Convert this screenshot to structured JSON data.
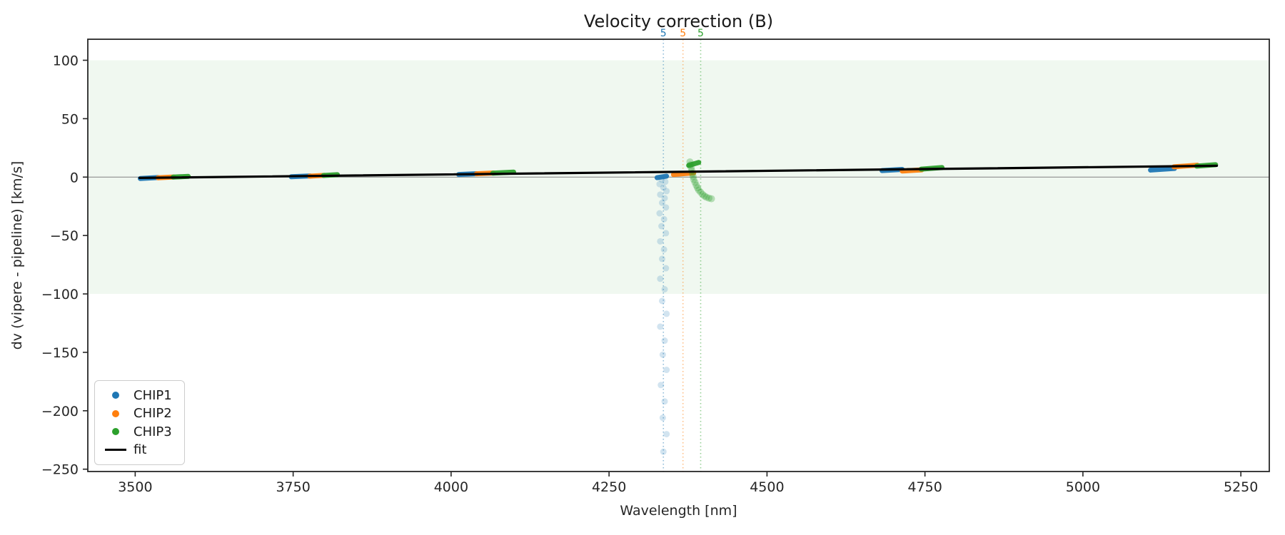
{
  "title": "Velocity correction (B)",
  "legend": {
    "items": [
      {
        "label": "CHIP1",
        "color": "#1f77b4",
        "marker": "dot"
      },
      {
        "label": "CHIP2",
        "color": "#ff7f0e",
        "marker": "dot"
      },
      {
        "label": "CHIP3",
        "color": "#2ca02c",
        "marker": "dot"
      },
      {
        "label": "fit",
        "color": "#000000",
        "marker": "line"
      }
    ]
  },
  "colors": {
    "chip1": "#1f77b4",
    "chip2": "#ff7f0e",
    "chip3": "#2ca02c",
    "fit": "#000000",
    "band_fill": "#2ca02c",
    "zero_line": "#808080",
    "spine": "#262626"
  },
  "chart_data": {
    "type": "scatter",
    "title": "Velocity correction (B)",
    "xlabel": "Wavelength [nm]",
    "ylabel": "dv (vipere - pipeline) [km/s]",
    "xlim": [
      3425,
      5295
    ],
    "ylim": [
      -252,
      118
    ],
    "x_ticks": [
      3500,
      3750,
      4000,
      4250,
      4500,
      4750,
      5000,
      5250
    ],
    "y_ticks": [
      100,
      50,
      0,
      -50,
      -100,
      -150,
      -200,
      -250
    ],
    "shaded_band": {
      "y_min": -100,
      "y_max": 100,
      "opacity": 0.07
    },
    "zero_line_y": 0,
    "fit_line": {
      "label": "fit",
      "x": [
        3507,
        5212
      ],
      "y": [
        -0.7,
        9.7
      ]
    },
    "vlines": [
      {
        "x": 4336,
        "label": "5",
        "color": "#1f77b4"
      },
      {
        "x": 4367,
        "label": "5",
        "color": "#ff7f0e"
      },
      {
        "x": 4395,
        "label": "5",
        "color": "#2ca02c"
      }
    ],
    "series": [
      {
        "name": "CHIP1",
        "color": "#1f77b4",
        "cluster_segments": [
          [
            3508,
            -1.2,
            3536,
            -0.4
          ],
          [
            3747,
            0.3,
            3777,
            1.0
          ],
          [
            4012,
            2.2,
            4040,
            2.9
          ],
          [
            4326,
            -0.5,
            4341,
            0.8
          ],
          [
            4682,
            5.6,
            4714,
            6.6
          ],
          [
            5107,
            6.0,
            5145,
            7.4
          ]
        ]
      },
      {
        "name": "CHIP2",
        "color": "#ff7f0e",
        "cluster_segments": [
          [
            3536,
            -0.6,
            3561,
            0.1
          ],
          [
            3776,
            0.8,
            3799,
            1.5
          ],
          [
            4040,
            2.8,
            4067,
            3.5
          ],
          [
            4352,
            2.2,
            4384,
            3.6
          ],
          [
            4714,
            5.2,
            4745,
            6.2
          ],
          [
            5144,
            8.8,
            5181,
            10.2
          ]
        ]
      },
      {
        "name": "CHIP3",
        "color": "#2ca02c",
        "cluster_segments": [
          [
            3560,
            0.0,
            3584,
            0.6
          ],
          [
            3798,
            1.4,
            3820,
            2.1
          ],
          [
            4066,
            3.4,
            4099,
            4.3
          ],
          [
            4376,
            10.0,
            4392,
            12.5
          ],
          [
            4744,
            6.8,
            4777,
            8.2
          ],
          [
            5180,
            9.4,
            5210,
            10.6
          ]
        ]
      }
    ],
    "outlier_trails": [
      {
        "series": "CHIP1",
        "color": "#1f77b4",
        "opacity": 0.2,
        "radius": 4.5,
        "points": [
          [
            4333,
            -2
          ],
          [
            4339,
            -4
          ],
          [
            4330,
            -6
          ],
          [
            4336,
            -9
          ],
          [
            4341,
            -12
          ],
          [
            4331,
            -15
          ],
          [
            4338,
            -18
          ],
          [
            4334,
            -22
          ],
          [
            4340,
            -26
          ],
          [
            4330,
            -31
          ],
          [
            4337,
            -36
          ],
          [
            4333,
            -42
          ],
          [
            4340,
            -48
          ],
          [
            4331,
            -55
          ],
          [
            4337,
            -62
          ],
          [
            4334,
            -70
          ],
          [
            4340,
            -78
          ],
          [
            4331,
            -87
          ],
          [
            4338,
            -96
          ],
          [
            4334,
            -106
          ],
          [
            4341,
            -117
          ],
          [
            4331,
            -128
          ],
          [
            4338,
            -140
          ],
          [
            4335,
            -152
          ],
          [
            4341,
            -165
          ],
          [
            4332,
            -178
          ],
          [
            4338,
            -192
          ],
          [
            4335,
            -206
          ],
          [
            4341,
            -220
          ],
          [
            4336,
            -235
          ]
        ]
      },
      {
        "series": "CHIP3",
        "color": "#2ca02c",
        "opacity": 0.3,
        "radius": 5,
        "points": [
          [
            4378,
            13
          ],
          [
            4379,
            10.5
          ],
          [
            4380,
            8
          ],
          [
            4381,
            5.5
          ],
          [
            4382,
            3
          ],
          [
            4383,
            0.5
          ],
          [
            4384,
            -2
          ],
          [
            4386,
            -4.5
          ],
          [
            4388,
            -7
          ],
          [
            4390,
            -9.2
          ],
          [
            4392,
            -11.2
          ],
          [
            4395,
            -13
          ],
          [
            4398,
            -14.8
          ],
          [
            4401,
            -16.2
          ],
          [
            4404,
            -17.2
          ],
          [
            4408,
            -18
          ],
          [
            4412,
            -18.5
          ]
        ]
      }
    ]
  }
}
